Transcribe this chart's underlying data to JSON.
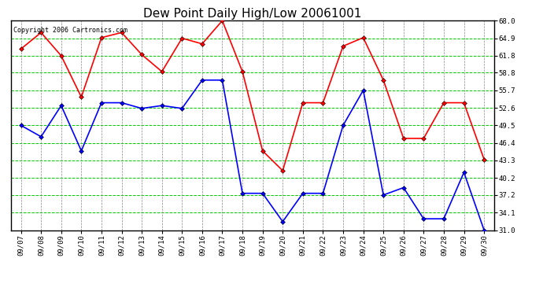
{
  "title": "Dew Point Daily High/Low 20061001",
  "copyright": "Copyright 2006 Cartronics.com",
  "dates": [
    "09/07",
    "09/08",
    "09/09",
    "09/10",
    "09/11",
    "09/12",
    "09/13",
    "09/14",
    "09/15",
    "09/16",
    "09/17",
    "09/18",
    "09/19",
    "09/20",
    "09/21",
    "09/22",
    "09/23",
    "09/24",
    "09/25",
    "09/26",
    "09/27",
    "09/28",
    "09/29",
    "09/30"
  ],
  "high_values": [
    63.0,
    65.9,
    61.8,
    54.5,
    65.0,
    65.9,
    62.0,
    59.0,
    64.9,
    63.9,
    68.0,
    59.0,
    45.0,
    41.5,
    53.5,
    53.5,
    63.5,
    65.0,
    57.5,
    47.2,
    47.2,
    53.5,
    53.5,
    43.5
  ],
  "low_values": [
    49.5,
    47.5,
    53.0,
    45.0,
    53.5,
    53.5,
    52.5,
    53.0,
    52.5,
    57.5,
    57.5,
    37.5,
    37.5,
    32.5,
    37.5,
    37.5,
    49.5,
    55.7,
    37.2,
    38.5,
    33.0,
    33.0,
    41.2,
    31.0
  ],
  "ylim_min": 31.0,
  "ylim_max": 68.0,
  "yticks": [
    31.0,
    34.1,
    37.2,
    40.2,
    43.3,
    46.4,
    49.5,
    52.6,
    55.7,
    58.8,
    61.8,
    64.9,
    68.0
  ],
  "high_color": "#ff0000",
  "low_color": "#0000ff",
  "grid_color_h": "#00cc00",
  "grid_color_v": "#888888",
  "bg_color": "#ffffff",
  "title_fontsize": 11,
  "tick_fontsize": 6.5,
  "copyright_fontsize": 6,
  "marker_size": 3,
  "linewidth": 1.2
}
